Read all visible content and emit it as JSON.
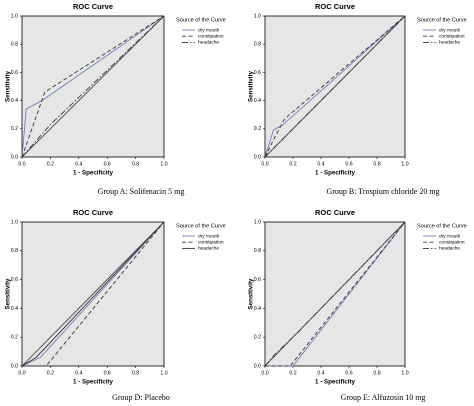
{
  "figure": {
    "background": "#ffffff",
    "plot_background": "#e6e6e6"
  },
  "chart_data": [
    {
      "type": "line",
      "panel": "a",
      "title": "ROC Curve",
      "xlabel": "1 - Specificity",
      "ylabel": "Sensitivity",
      "caption": "Group A: Solifenacin 5 mg",
      "xlim": [
        0,
        1
      ],
      "ylim": [
        0,
        1
      ],
      "xticks": [
        "0.0",
        "0.2",
        "0.4",
        "0.6",
        "0.8",
        "1.0"
      ],
      "yticks": [
        "0.0",
        "0.2",
        "0.4",
        "0.6",
        "0.8",
        "1.0"
      ],
      "grid": false,
      "legend": {
        "title": "Source of the Curve",
        "position": "top-right"
      },
      "series": [
        {
          "name": "dry mouth",
          "color": "#6f7fc2",
          "dash": "solid",
          "points": [
            [
              0,
              0
            ],
            [
              0.03,
              0.34
            ],
            [
              0.14,
              0.4
            ],
            [
              1,
              1
            ]
          ]
        },
        {
          "name": "constipation",
          "color": "#333333",
          "dash": "dashed",
          "points": [
            [
              0,
              0
            ],
            [
              0.07,
              0.2
            ],
            [
              0.16,
              0.46
            ],
            [
              1,
              1
            ]
          ]
        },
        {
          "name": "headache",
          "color": "#333333",
          "dash": "dashdot",
          "points": [
            [
              0,
              0
            ],
            [
              0.2,
              0.23
            ],
            [
              1,
              1
            ]
          ]
        },
        {
          "name": "",
          "color": "#333333",
          "dash": "solid",
          "reference": true,
          "points": [
            [
              0,
              0
            ],
            [
              1,
              1
            ]
          ]
        }
      ]
    },
    {
      "type": "line",
      "panel": "b",
      "title": "ROC Curve",
      "xlabel": "1 - Specificity",
      "ylabel": "Sensitivity",
      "caption": "Group B: Trospium chloride 20 mg",
      "xlim": [
        0,
        1
      ],
      "ylim": [
        0,
        1
      ],
      "xticks": [
        "0.0",
        "0.2",
        "0.4",
        "0.6",
        "0.8",
        "1.0"
      ],
      "yticks": [
        "0.0",
        "0.2",
        "0.4",
        "0.6",
        "0.8",
        "1.0"
      ],
      "grid": false,
      "legend": {
        "title": "Source of the Curve",
        "position": "top-right"
      },
      "series": [
        {
          "name": "dry mouth",
          "color": "#6f7fc2",
          "dash": "solid",
          "points": [
            [
              0,
              0
            ],
            [
              0.06,
              0.19
            ],
            [
              0.13,
              0.23
            ],
            [
              1,
              1
            ]
          ]
        },
        {
          "name": "constipation",
          "color": "#333333",
          "dash": "dashed",
          "points": [
            [
              0,
              0
            ],
            [
              0.07,
              0.14
            ],
            [
              0.14,
              0.27
            ],
            [
              1,
              1
            ]
          ]
        },
        {
          "name": "headache",
          "color": "#333333",
          "dash": "dashdot",
          "points": [
            [
              0,
              0
            ],
            [
              0.11,
              0.11
            ],
            [
              1,
              1
            ]
          ]
        },
        {
          "name": "",
          "color": "#333333",
          "dash": "solid",
          "reference": true,
          "points": [
            [
              0,
              0
            ],
            [
              1,
              1
            ]
          ]
        }
      ]
    },
    {
      "type": "line",
      "panel": "d",
      "title": "ROC Curve",
      "xlabel": "1 - Specificity",
      "ylabel": "Sensitivity",
      "caption": "Group D: Placebo",
      "xlim": [
        0,
        1
      ],
      "ylim": [
        0,
        1
      ],
      "xticks": [
        "0.0",
        "0.2",
        "0.4",
        "0.6",
        "0.8",
        "1.0"
      ],
      "yticks": [
        "0.0",
        "0.2",
        "0.4",
        "0.6",
        "0.8",
        "1.0"
      ],
      "grid": false,
      "legend": {
        "title": "Source of the Curve",
        "position": "top-right"
      },
      "series": [
        {
          "name": "dry mouth",
          "color": "#6f7fc2",
          "dash": "solid",
          "points": [
            [
              0,
              0
            ],
            [
              0.13,
              0.06
            ],
            [
              1,
              1
            ]
          ]
        },
        {
          "name": "constipation",
          "color": "#333333",
          "dash": "dashed",
          "points": [
            [
              0,
              0
            ],
            [
              0.17,
              0
            ],
            [
              1,
              1
            ]
          ]
        },
        {
          "name": "headache",
          "color": "#333333",
          "dash": "solid",
          "points": [
            [
              0,
              0
            ],
            [
              0.1,
              0.06
            ],
            [
              1,
              1
            ]
          ]
        },
        {
          "name": "",
          "color": "#333333",
          "dash": "solid",
          "reference": true,
          "points": [
            [
              0,
              0
            ],
            [
              1,
              1
            ]
          ]
        }
      ]
    },
    {
      "type": "line",
      "panel": "e",
      "title": "ROC Curve",
      "xlabel": "1 - Specificity",
      "ylabel": "Sensitivity",
      "caption": "Group E: Alfuzosin 10 mg",
      "xlim": [
        0,
        1
      ],
      "ylim": [
        0,
        1
      ],
      "xticks": [
        "0.0",
        "0.2",
        "0.4",
        "0.6",
        "0.8",
        "1.0"
      ],
      "yticks": [
        "0.0",
        "0.2",
        "0.4",
        "0.6",
        "0.8",
        "1.0"
      ],
      "grid": false,
      "legend": {
        "title": "Source of the Curve",
        "position": "top-right"
      },
      "series": [
        {
          "name": "dry mouth",
          "color": "#6f7fc2",
          "dash": "solid",
          "points": [
            [
              0,
              0
            ],
            [
              0.2,
              0
            ],
            [
              1,
              1
            ]
          ]
        },
        {
          "name": "constipation",
          "color": "#333333",
          "dash": "dashed",
          "points": [
            [
              0,
              0
            ],
            [
              0.18,
              0
            ],
            [
              1,
              1
            ]
          ]
        },
        {
          "name": "headache",
          "color": "#333333",
          "dash": "dashdot",
          "points": [
            [
              0,
              0
            ],
            [
              0.07,
              0.08
            ],
            [
              0.21,
              0.21
            ],
            [
              1,
              1
            ]
          ]
        },
        {
          "name": "",
          "color": "#333333",
          "dash": "solid",
          "reference": true,
          "points": [
            [
              0,
              0
            ],
            [
              1,
              1
            ]
          ]
        }
      ]
    }
  ]
}
